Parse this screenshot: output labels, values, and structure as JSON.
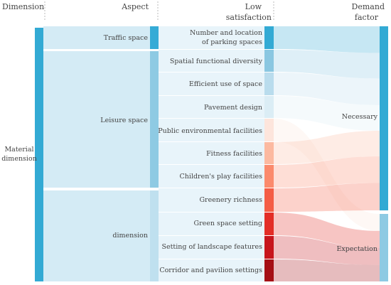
{
  "headers": {
    "dimension": "Dimension",
    "aspect": "Aspect",
    "low_line1": "Low",
    "low_line2": "satisfaction",
    "demand_line1": "Demand",
    "demand_line2": "factor"
  },
  "dimension": {
    "line1": "Material",
    "line2": "dimension",
    "color": "#33aad4"
  },
  "aspects": [
    {
      "id": "traffic",
      "label": "Traffic space",
      "color": "#35abd6"
    },
    {
      "id": "leisure",
      "label": "Leisure space",
      "color": "#8ecae3"
    },
    {
      "id": "dimension",
      "label": "dimension",
      "color": "#bfe0ef"
    }
  ],
  "low_satisfaction": [
    {
      "id": "parking",
      "label_line1": "Number and location",
      "label_line2": "of parking spaces",
      "aspect": "traffic",
      "demand": "necessary",
      "color": "#33aad4"
    },
    {
      "id": "spatial",
      "label_line1": "Spatial functional diversity",
      "label_line2": "",
      "aspect": "leisure",
      "demand": "necessary",
      "color": "#8ac7e1"
    },
    {
      "id": "efficient",
      "label_line1": "Efficient use of space",
      "label_line2": "",
      "aspect": "leisure",
      "demand": "necessary",
      "color": "#b9dced"
    },
    {
      "id": "pavement",
      "label_line1": "Pavement design",
      "label_line2": "",
      "aspect": "leisure",
      "demand": "necessary",
      "color": "#dbedf5"
    },
    {
      "id": "public",
      "label_line1": "Public environmental facilities",
      "label_line2": "",
      "aspect": "leisure",
      "demand": "expectation",
      "color": "#fde5dc"
    },
    {
      "id": "fitness",
      "label_line1": "Fitness facilities",
      "label_line2": "",
      "aspect": "leisure",
      "demand": "necessary",
      "color": "#fcb9a0"
    },
    {
      "id": "children",
      "label_line1": "Children's play facilities",
      "label_line2": "",
      "aspect": "leisure",
      "demand": "necessary",
      "color": "#fb8a6c"
    },
    {
      "id": "greenery",
      "label_line1": "Greenery richness",
      "label_line2": "",
      "aspect": "dimension",
      "demand": "necessary",
      "color": "#f45d45"
    },
    {
      "id": "greenset",
      "label_line1": "Green space setting",
      "label_line2": "",
      "aspect": "dimension",
      "demand": "expectation",
      "color": "#e32d26"
    },
    {
      "id": "landscape",
      "label_line1": "Setting of landscape features",
      "label_line2": "",
      "aspect": "dimension",
      "demand": "expectation",
      "color": "#c7151c"
    },
    {
      "id": "corridor",
      "label_line1": "Corridor and pavilion settings",
      "label_line2": "",
      "aspect": "dimension",
      "demand": "expectation",
      "color": "#a50f15"
    }
  ],
  "demand": [
    {
      "id": "necessary",
      "label": "Necessary",
      "color": "#33aad4"
    },
    {
      "id": "expectation",
      "label": "Expectation",
      "color": "#8ecae3"
    }
  ]
}
